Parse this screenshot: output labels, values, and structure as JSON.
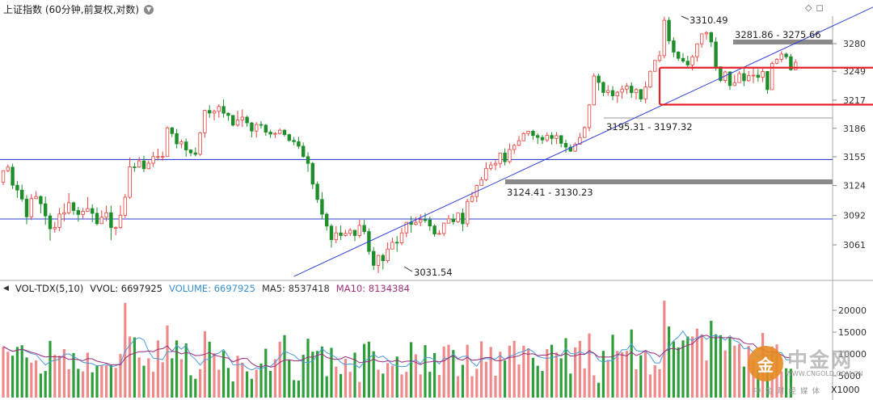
{
  "header": {
    "title": "上证指数 (60分钟,前复权,对数)",
    "menu_icon": "chevron-down-icon"
  },
  "top_right_icons": {
    "diamond": "◇",
    "window": "◻"
  },
  "vol_header": {
    "indicator": "VOL-TDX(5,10)",
    "vvol": "VVOL: 6697925",
    "volume": "VOLUME: 6697925",
    "ma5": "MA5: 8537418",
    "ma10": "MA10: 8134384"
  },
  "watermark": {
    "logo_char": "金",
    "text": "中金网",
    "site": "WWW.CNGOLD.COM.CN",
    "tag": "中金财经媒体"
  },
  "vol_unit": "X1000",
  "colors": {
    "up": "#e8403a",
    "down": "#1e8e2a",
    "line": "#3040d8",
    "box": "#e8202a",
    "bar_up": "#f08a8a",
    "bar_down": "#2e9e3a"
  },
  "chart_data": {
    "type": "candlestick",
    "title": "上证指数 (60分钟,前复权,对数)",
    "scale": "log",
    "y_ticks": [
      3061,
      3092,
      3124,
      3155,
      3186,
      3217,
      3249,
      3280
    ],
    "vol_ticks": [
      "5000",
      "10000",
      "15000",
      "20000"
    ],
    "annotations": [
      {
        "text": "3310.49",
        "kind": "high"
      },
      {
        "text": "3281.86 - 3275.66",
        "kind": "gap"
      },
      {
        "text": "3195.31 - 3197.32",
        "kind": "gap"
      },
      {
        "text": "3124.41 - 3130.23",
        "kind": "gap"
      },
      {
        "text": "3031.54",
        "kind": "low"
      }
    ],
    "horizontal_lines": [
      3152.0,
      3088.3
    ],
    "trendline": {
      "from": [
        62,
        3028
      ],
      "to": [
        189,
        3330
      ]
    },
    "resistance_box": {
      "x_from": 140,
      "x_to": 190,
      "y_low": 3212,
      "y_high": 3253
    },
    "candles": [
      [
        3127.7,
        3140.0,
        3124.4,
        3140.1
      ],
      [
        3140.0,
        3143.8,
        3138.4,
        3146.7
      ],
      [
        3143.8,
        3124.3,
        3120.2,
        3147.5
      ],
      [
        3124.3,
        3119.1,
        3110.8,
        3129.0
      ],
      [
        3119.1,
        3109.5,
        3106.7,
        3125.0
      ],
      [
        3109.5,
        3090.6,
        3082.7,
        3113.8
      ],
      [
        3090.6,
        3110.0,
        3087.2,
        3114.8
      ],
      [
        3110.0,
        3112.3,
        3109.5,
        3117.9
      ],
      [
        3112.3,
        3104.5,
        3094.3,
        3113.3
      ],
      [
        3104.5,
        3091.6,
        3082.1,
        3112.3
      ],
      [
        3091.6,
        3077.9,
        3065.5,
        3094.6
      ],
      [
        3077.9,
        3079.4,
        3073.9,
        3085.3
      ],
      [
        3079.4,
        3093.5,
        3075.6,
        3100.0
      ],
      [
        3093.5,
        3094.9,
        3085.9,
        3105.0
      ],
      [
        3094.9,
        3105.6,
        3092.9,
        3115.8
      ],
      [
        3105.6,
        3097.3,
        3092.7,
        3106.8
      ],
      [
        3097.3,
        3093.1,
        3085.5,
        3101.3
      ],
      [
        3093.1,
        3096.4,
        3088.9,
        3100.0
      ],
      [
        3096.4,
        3099.4,
        3095.8,
        3111.8
      ],
      [
        3099.4,
        3094.3,
        3084.9,
        3103.9
      ],
      [
        3094.3,
        3083.3,
        3081.4,
        3100.6
      ],
      [
        3083.3,
        3090.2,
        3083.2,
        3097.5
      ],
      [
        3090.2,
        3094.9,
        3086.0,
        3102.5
      ],
      [
        3094.9,
        3079.1,
        3065.8,
        3102.5
      ],
      [
        3079.1,
        3079.2,
        3071.1,
        3080.4
      ],
      [
        3079.2,
        3092.3,
        3077.8,
        3102.7
      ],
      [
        3092.3,
        3111.5,
        3089.4,
        3114.8
      ],
      [
        3111.5,
        3144.1,
        3109.7,
        3154.2
      ],
      [
        3144.1,
        3143.9,
        3138.8,
        3148.4
      ],
      [
        3143.9,
        3150.5,
        3142.9,
        3154.9
      ],
      [
        3150.5,
        3142.1,
        3138.4,
        3156.1
      ],
      [
        3142.1,
        3148.0,
        3141.4,
        3151.1
      ],
      [
        3148.0,
        3155.2,
        3143.9,
        3160.2
      ],
      [
        3155.2,
        3155.2,
        3151.1,
        3163.8
      ],
      [
        3155.2,
        3155.3,
        3150.7,
        3160.7
      ],
      [
        3155.3,
        3186.5,
        3155.0,
        3188.1
      ],
      [
        3186.5,
        3180.2,
        3176.5,
        3187.5
      ],
      [
        3180.2,
        3169.0,
        3164.2,
        3185.2
      ],
      [
        3169.0,
        3171.2,
        3164.2,
        3173.8
      ],
      [
        3171.2,
        3162.4,
        3155.0,
        3174.8
      ],
      [
        3162.4,
        3159.2,
        3155.6,
        3163.1
      ],
      [
        3159.2,
        3157.7,
        3155.4,
        3165.1
      ],
      [
        3157.7,
        3181.1,
        3156.0,
        3182.0
      ],
      [
        3181.1,
        3205.6,
        3175.7,
        3206.4
      ],
      [
        3205.6,
        3202.7,
        3197.5,
        3211.4
      ],
      [
        3202.7,
        3204.6,
        3194.8,
        3206.5
      ],
      [
        3204.6,
        3210.0,
        3197.7,
        3212.4
      ],
      [
        3210.0,
        3202.5,
        3197.7,
        3217.8
      ],
      [
        3202.5,
        3200.1,
        3194.1,
        3203.5
      ],
      [
        3200.1,
        3189.5,
        3188.0,
        3200.6
      ],
      [
        3189.5,
        3195.1,
        3187.6,
        3205.2
      ],
      [
        3195.1,
        3198.2,
        3187.3,
        3206.8
      ],
      [
        3198.2,
        3191.9,
        3187.6,
        3199.9
      ],
      [
        3191.9,
        3183.0,
        3176.1,
        3192.9
      ],
      [
        3183.0,
        3190.2,
        3175.8,
        3192.8
      ],
      [
        3190.2,
        3189.5,
        3185.7,
        3193.9
      ],
      [
        3189.5,
        3181.8,
        3177.8,
        3190.7
      ],
      [
        3181.8,
        3179.7,
        3175.5,
        3184.5
      ],
      [
        3179.7,
        3180.4,
        3175.3,
        3181.9
      ],
      [
        3180.4,
        3183.9,
        3179.3,
        3186.1
      ],
      [
        3183.9,
        3179.1,
        3176.9,
        3185.3
      ],
      [
        3179.1,
        3172.8,
        3171.2,
        3180.2
      ],
      [
        3172.8,
        3171.4,
        3167.5,
        3176.4
      ],
      [
        3171.4,
        3166.5,
        3163.5,
        3176.5
      ],
      [
        3166.5,
        3155.2,
        3154.2,
        3170.5
      ],
      [
        3155.2,
        3147.8,
        3138.6,
        3159.8
      ],
      [
        3147.8,
        3125.5,
        3120.3,
        3149.5
      ],
      [
        3125.5,
        3109.1,
        3105.5,
        3128.4
      ],
      [
        3109.1,
        3093.4,
        3087.8,
        3116.9
      ],
      [
        3093.4,
        3080.8,
        3076.0,
        3095.4
      ],
      [
        3080.8,
        3066.4,
        3058.1,
        3083.0
      ],
      [
        3066.4,
        3073.6,
        3062.8,
        3080.8
      ],
      [
        3073.6,
        3070.8,
        3066.2,
        3081.4
      ],
      [
        3070.8,
        3073.1,
        3069.8,
        3076.9
      ],
      [
        3073.1,
        3076.4,
        3070.3,
        3078.5
      ],
      [
        3076.4,
        3070.8,
        3064.9,
        3076.8
      ],
      [
        3070.8,
        3081.5,
        3068.5,
        3087.5
      ],
      [
        3081.5,
        3075.0,
        3072.0,
        3087.4
      ],
      [
        3075.0,
        3054.1,
        3050.8,
        3078.4
      ],
      [
        3054.1,
        3039.5,
        3034.7,
        3058.7
      ],
      [
        3039.5,
        3049.9,
        3031.5,
        3050.6
      ],
      [
        3049.9,
        3044.4,
        3035.2,
        3051.6
      ],
      [
        3044.4,
        3056.6,
        3042.1,
        3063.6
      ],
      [
        3056.6,
        3063.7,
        3056.3,
        3068.6
      ],
      [
        3063.7,
        3063.2,
        3053.7,
        3070.2
      ],
      [
        3063.2,
        3073.6,
        3060.6,
        3078.8
      ],
      [
        3073.6,
        3084.8,
        3069.2,
        3085.0
      ],
      [
        3084.8,
        3082.6,
        3073.8,
        3091.3
      ],
      [
        3082.6,
        3084.8,
        3081.2,
        3090.3
      ],
      [
        3084.8,
        3087.5,
        3080.5,
        3093.3
      ],
      [
        3087.5,
        3087.3,
        3084.2,
        3094.7
      ],
      [
        3087.3,
        3080.9,
        3075.6,
        3090.8
      ],
      [
        3080.9,
        3072.4,
        3069.6,
        3082.8
      ],
      [
        3072.4,
        3073.0,
        3071.6,
        3076.5
      ],
      [
        3073.0,
        3083.9,
        3070.0,
        3084.6
      ],
      [
        3083.9,
        3088.4,
        3083.6,
        3092.6
      ],
      [
        3088.4,
        3085.4,
        3082.2,
        3093.7
      ],
      [
        3085.4,
        3094.6,
        3084.1,
        3094.9
      ],
      [
        3094.6,
        3083.2,
        3075.4,
        3099.5
      ],
      [
        3083.2,
        3107.0,
        3079.8,
        3109.7
      ],
      [
        3107.0,
        3112.2,
        3106.0,
        3117.5
      ],
      [
        3112.2,
        3124.0,
        3106.4,
        3124.9
      ],
      [
        3124.0,
        3130.3,
        3123.6,
        3133.3
      ],
      [
        3130.3,
        3142.5,
        3128.7,
        3149.1
      ],
      [
        3142.5,
        3146.2,
        3140.0,
        3149.7
      ],
      [
        3146.2,
        3147.8,
        3140.5,
        3151.4
      ],
      [
        3147.8,
        3159.1,
        3143.1,
        3159.5
      ],
      [
        3159.1,
        3149.7,
        3145.5,
        3164.1
      ],
      [
        3149.7,
        3162.9,
        3147.6,
        3169.4
      ],
      [
        3162.9,
        3167.5,
        3158.2,
        3168.9
      ],
      [
        3167.5,
        3172.4,
        3166.4,
        3177.6
      ],
      [
        3172.4,
        3180.3,
        3172.2,
        3181.8
      ],
      [
        3180.3,
        3182.8,
        3177.6,
        3183.3
      ],
      [
        3182.8,
        3178.1,
        3173.4,
        3184.4
      ],
      [
        3178.1,
        3176.0,
        3168.9,
        3180.6
      ],
      [
        3176.0,
        3173.3,
        3168.9,
        3178.6
      ],
      [
        3173.3,
        3178.2,
        3170.9,
        3181.6
      ],
      [
        3178.2,
        3174.9,
        3168.2,
        3181.8
      ],
      [
        3174.9,
        3178.0,
        3168.7,
        3182.0
      ],
      [
        3178.0,
        3169.6,
        3165.2,
        3178.5
      ],
      [
        3169.6,
        3165.5,
        3159.4,
        3173.5
      ],
      [
        3165.5,
        3161.1,
        3160.2,
        3168.4
      ],
      [
        3161.1,
        3168.7,
        3160.2,
        3170.5
      ],
      [
        3168.7,
        3175.9,
        3168.1,
        3181.0
      ],
      [
        3175.9,
        3186.8,
        3175.8,
        3188.3
      ],
      [
        3186.8,
        3211.7,
        3182.8,
        3212.5
      ],
      [
        3211.7,
        3243.7,
        3211.1,
        3246.7
      ],
      [
        3243.7,
        3236.6,
        3227.5,
        3246.5
      ],
      [
        3236.6,
        3225.4,
        3221.4,
        3237.6
      ],
      [
        3225.4,
        3227.6,
        3222.0,
        3233.5
      ],
      [
        3227.6,
        3221.8,
        3216.8,
        3232.6
      ],
      [
        3221.8,
        3225.8,
        3214.0,
        3226.9
      ],
      [
        3225.8,
        3229.2,
        3218.5,
        3233.0
      ],
      [
        3229.2,
        3232.5,
        3223.7,
        3235.8
      ],
      [
        3232.5,
        3225.2,
        3219.4,
        3236.8
      ],
      [
        3225.2,
        3228.7,
        3217.8,
        3230.5
      ],
      [
        3228.7,
        3218.2,
        3215.0,
        3228.9
      ],
      [
        3218.2,
        3231.5,
        3213.4,
        3237.7
      ],
      [
        3231.5,
        3249.0,
        3230.2,
        3249.8
      ],
      [
        3249.0,
        3261.2,
        3248.6,
        3261.3
      ],
      [
        3261.2,
        3266.5,
        3259.0,
        3272.0
      ],
      [
        3266.5,
        3306.4,
        3263.4,
        3310.5
      ],
      [
        3306.4,
        3283.2,
        3279.4,
        3310.1
      ],
      [
        3283.2,
        3270.5,
        3264.8,
        3287.1
      ],
      [
        3270.5,
        3263.5,
        3260.6,
        3271.4
      ],
      [
        3263.5,
        3260.3,
        3258.3,
        3269.4
      ],
      [
        3260.3,
        3256.1,
        3252.4,
        3266.4
      ],
      [
        3256.1,
        3265.3,
        3249.9,
        3267.4
      ],
      [
        3265.3,
        3279.8,
        3259.9,
        3280.5
      ],
      [
        3279.8,
        3291.0,
        3275.4,
        3291.6
      ],
      [
        3291.0,
        3292.5,
        3284.4,
        3294.1
      ],
      [
        3292.5,
        3281.9,
        3276.2,
        3293.5
      ],
      [
        3281.9,
        3254.0,
        3249.6,
        3287.2
      ],
      [
        3254.0,
        3238.7,
        3237.0,
        3254.6
      ],
      [
        3238.7,
        3248.3,
        3235.9,
        3249.8
      ],
      [
        3248.3,
        3233.1,
        3228.3,
        3249.1
      ],
      [
        3233.1,
        3236.4,
        3232.6,
        3245.2
      ],
      [
        3236.4,
        3246.4,
        3236.2,
        3249.2
      ],
      [
        3246.4,
        3238.5,
        3232.5,
        3252.5
      ],
      [
        3238.5,
        3244.1,
        3237.6,
        3249.2
      ],
      [
        3244.1,
        3244.7,
        3235.7,
        3254.0
      ],
      [
        3244.7,
        3242.3,
        3237.4,
        3251.5
      ],
      [
        3242.3,
        3248.8,
        3236.9,
        3251.8
      ],
      [
        3248.8,
        3228.6,
        3224.1,
        3249.3
      ],
      [
        3228.6,
        3258.0,
        3228.4,
        3260.0
      ],
      [
        3258.0,
        3262.4,
        3256.6,
        3263.6
      ],
      [
        3262.4,
        3268.3,
        3259.2,
        3271.5
      ],
      [
        3268.3,
        3265.3,
        3262.6,
        3270.1
      ],
      [
        3265.3,
        3250.7,
        3249.7,
        3268.4
      ],
      [
        3250.7,
        3259.0,
        3250.2,
        3262.5
      ]
    ],
    "volume_k": [
      11700,
      10500,
      9600,
      11600,
      12000,
      9200,
      8000,
      8500,
      5500,
      6100,
      13000,
      9800,
      9600,
      11100,
      6500,
      10200,
      6600,
      6000,
      10300,
      5800,
      7400,
      7400,
      7400,
      7400,
      6800,
      10000,
      21700,
      14000,
      13800,
      9200,
      7300,
      9000,
      5900,
      13100,
      8100,
      16500,
      9000,
      13100,
      8800,
      12400,
      5100,
      4300,
      6500,
      15200,
      12800,
      10200,
      6400,
      10700,
      6800,
      3700,
      9600,
      8000,
      6000,
      4300,
      6400,
      7800,
      11200,
      6100,
      8800,
      12800,
      14300,
      8700,
      4000,
      3900,
      9800,
      13500,
      10500,
      10700,
      11700,
      4900,
      11400,
      7100,
      5400,
      8900,
      5900,
      10300,
      3600,
      12300,
      12800,
      10600,
      6400,
      5500,
      7900,
      7300,
      9400,
      5300,
      5900,
      12700,
      9900,
      5300,
      12000,
      5900,
      10200,
      5200,
      11700,
      12100,
      10900,
      4900,
      7500,
      12100,
      4900,
      6600,
      12900,
      8200,
      11600,
      5000,
      10500,
      8500,
      11900,
      13000,
      7600,
      11900,
      11300,
      9100,
      7300,
      6100,
      11100,
      12100,
      10300,
      9000,
      13600,
      5500,
      11500,
      13000,
      6700,
      14700,
      5100,
      3400,
      10700,
      8600,
      14400,
      10700,
      10400,
      10700,
      15600,
      6500,
      9700,
      10800,
      5300,
      7400,
      6500,
      22200,
      16300,
      12900,
      11500,
      13100,
      14000,
      14000,
      15800,
      14500,
      8500,
      17600,
      14500,
      14300,
      10800,
      13800,
      11900,
      12300,
      7100,
      11800,
      8600,
      6500,
      14800,
      6700,
      11700,
      12200,
      6000,
      6700,
      6600
    ]
  }
}
